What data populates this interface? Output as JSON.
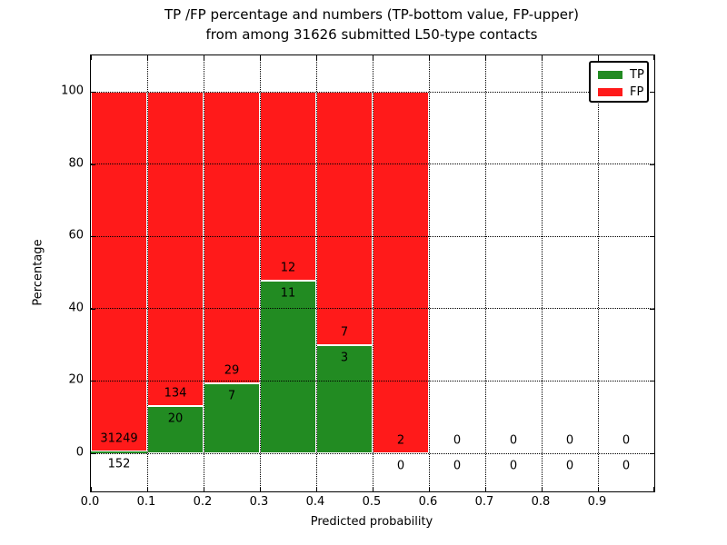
{
  "title": {
    "line1": "TP /FP percentage and numbers (TP-bottom value, FP-upper)",
    "line2": "from among 31626 submitted L50-type contacts"
  },
  "axes": {
    "xlabel": "Predicted probability",
    "ylabel": "Percentage",
    "xtick_labels": [
      "0.0",
      "0.1",
      "0.2",
      "0.3",
      "0.4",
      "0.5",
      "0.6",
      "0.7",
      "0.8",
      "0.9"
    ],
    "ytick_labels": [
      "0",
      "20",
      "40",
      "60",
      "80",
      "100"
    ],
    "ytick_values": [
      0,
      20,
      40,
      60,
      80,
      100
    ]
  },
  "legend": {
    "items": [
      {
        "label": "TP",
        "color": "#228B22"
      },
      {
        "label": "FP",
        "color": "#FF1A1A"
      }
    ]
  },
  "colors": {
    "tp": "#228B22",
    "fp": "#FF1A1A",
    "bar_edge": "#ffffff",
    "grid": "#000000",
    "text": "#000000"
  },
  "chart_data": {
    "type": "bar",
    "stacked": true,
    "title": "TP /FP percentage and numbers (TP-bottom value, FP-upper) from among 31626 submitted L50-type contacts",
    "xlabel": "Predicted probability",
    "ylabel": "Percentage",
    "xlim": [
      0.0,
      1.0
    ],
    "ylim": [
      -10.5,
      110
    ],
    "grid": "dotted",
    "legend_position": "upper right",
    "total_contacts": 31626,
    "bin_edges": [
      0.0,
      0.1,
      0.2,
      0.3,
      0.4,
      0.5,
      0.6,
      0.7,
      0.8,
      0.9,
      1.0
    ],
    "categories": [
      "0.0-0.1",
      "0.1-0.2",
      "0.2-0.3",
      "0.3-0.4",
      "0.4-0.5",
      "0.5-0.6",
      "0.6-0.7",
      "0.7-0.8",
      "0.8-0.9",
      "0.9-1.0"
    ],
    "series": [
      {
        "name": "TP",
        "counts": [
          152,
          20,
          7,
          11,
          3,
          0,
          0,
          0,
          0,
          0
        ],
        "pct": [
          0.48,
          12.99,
          19.44,
          47.83,
          30.0,
          0.0,
          0.0,
          0.0,
          0.0,
          0.0
        ]
      },
      {
        "name": "FP",
        "counts": [
          31249,
          134,
          29,
          12,
          7,
          2,
          0,
          0,
          0,
          0
        ],
        "pct": [
          99.52,
          87.01,
          80.56,
          52.17,
          70.0,
          100.0,
          0.0,
          0.0,
          0.0,
          0.0
        ]
      }
    ],
    "bar_total_pct": [
      100,
      100,
      100,
      100,
      100,
      100,
      0,
      0,
      0,
      0
    ]
  }
}
